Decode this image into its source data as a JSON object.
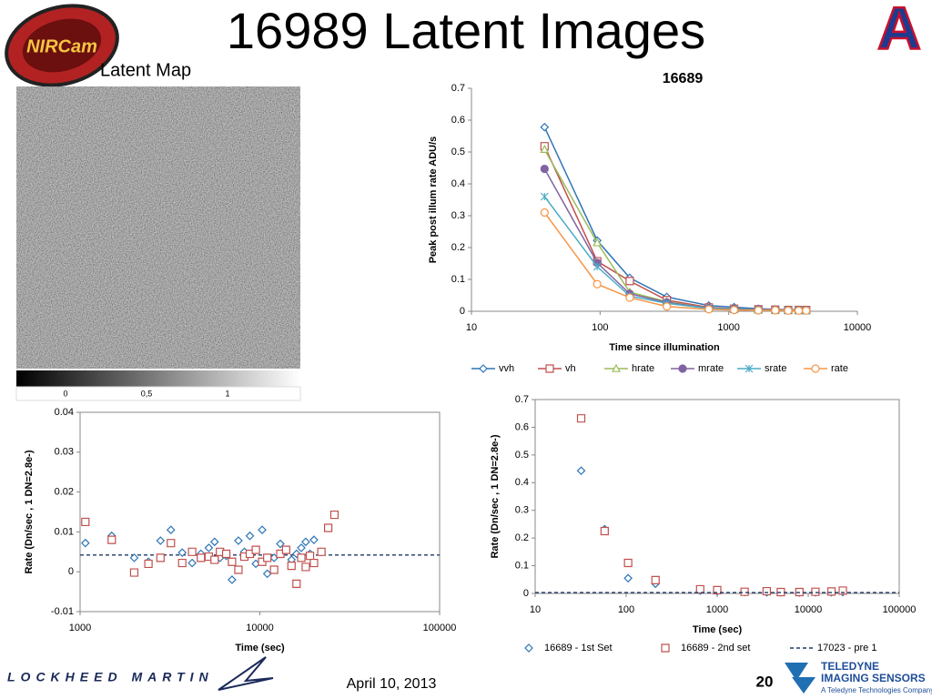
{
  "title": "16989 Latent Images",
  "latent_map": {
    "label": "Latent Map",
    "colorbar_labels": [
      "0",
      "0,5",
      "1"
    ]
  },
  "logos": {
    "nircam": "NIRCam",
    "arizona": "A",
    "lockheed": "LOCKHEED MARTIN",
    "teledyne": "TELEDYNE",
    "teledyne_division": "IMAGING SENSORS",
    "teledyne_tagline": "A Teledyne Technologies Company"
  },
  "date": "April 10, 2013",
  "page_number": "20",
  "chart_data": [
    {
      "type": "line",
      "title": "16689",
      "frame": "axes",
      "xlabel": "Time since illumination",
      "ylabel": "Peak post illum rate   ADU/s",
      "xscale": "log",
      "xlim": [
        10,
        10000
      ],
      "xticks": [
        10,
        100,
        1000,
        10000
      ],
      "ylim": [
        0,
        0.7
      ],
      "yticks": [
        0,
        0.1,
        0.2,
        0.3,
        0.4,
        0.5,
        0.6,
        0.7
      ],
      "legend": "bottom",
      "x": [
        37,
        95,
        170,
        330,
        700,
        1100,
        1700,
        2300,
        2900,
        3500,
        4000
      ],
      "series": [
        {
          "name": "vvh",
          "color": "#2e75b6",
          "marker": "diamond",
          "values": [
            0.578,
            0.222,
            0.105,
            0.045,
            0.018,
            0.013,
            0.008,
            0.006,
            0.005,
            0.005,
            0.004
          ]
        },
        {
          "name": "vh",
          "color": "#c0504d",
          "marker": "square",
          "values": [
            0.518,
            0.157,
            0.095,
            0.035,
            0.012,
            0.008,
            0.006,
            0.005,
            0.004,
            0.004,
            0.004
          ]
        },
        {
          "name": "hrate",
          "color": "#9bbb59",
          "marker": "triangle",
          "values": [
            0.508,
            0.215,
            0.06,
            0.03,
            0.01,
            0.008,
            0.005,
            0.004,
            0.004,
            0.003,
            0.003
          ]
        },
        {
          "name": "mrate",
          "color": "#8064a2",
          "marker": "circle",
          "values": [
            0.447,
            0.152,
            0.055,
            0.028,
            0.01,
            0.007,
            0.005,
            0.004,
            0.003,
            0.003,
            0.003
          ]
        },
        {
          "name": "srate",
          "color": "#4bacc6",
          "marker": "star",
          "values": [
            0.36,
            0.14,
            0.048,
            0.025,
            0.009,
            0.006,
            0.004,
            0.003,
            0.003,
            0.003,
            0.002
          ]
        },
        {
          "name": "rate",
          "color": "#f79646",
          "marker": "open-circle",
          "values": [
            0.31,
            0.085,
            0.043,
            0.015,
            0.006,
            0.004,
            0.003,
            0.003,
            0.002,
            0.002,
            0.002
          ]
        }
      ]
    },
    {
      "type": "scatter",
      "frame": "box",
      "xlabel": "Time (sec)",
      "ylabel": "Rate (Dn/sec , 1 DN=2.8e-)",
      "xscale": "log",
      "xlim": [
        1000,
        100000
      ],
      "xticks": [
        1000,
        10000,
        100000
      ],
      "ylim": [
        -0.01,
        0.04
      ],
      "yticks": [
        -0.01,
        0,
        0.01,
        0.02,
        0.03,
        0.04
      ],
      "reference_line": {
        "value": 0.0042,
        "color": "#1f3864",
        "line_style": "dashed"
      },
      "series": [
        {
          "color": "#2e75b6",
          "marker": "diamond",
          "x": [
            1070,
            1500,
            2000,
            2400,
            2800,
            3200,
            3700,
            4200,
            4700,
            5200,
            5600,
            6000,
            6500,
            7000,
            7600,
            8200,
            8800,
            9500,
            10300,
            11000,
            12000,
            13000,
            14000,
            15000,
            16000,
            17000,
            18000,
            19000,
            20000,
            22000
          ],
          "values": [
            0.0072,
            0.009,
            0.0035,
            0.0025,
            0.0078,
            0.0105,
            0.0048,
            0.0022,
            0.0045,
            0.006,
            0.0075,
            0.0035,
            0.004,
            -0.002,
            0.0078,
            0.005,
            0.009,
            0.002,
            0.0105,
            -0.0005,
            0.0035,
            0.007,
            0.0055,
            0.003,
            0.0045,
            0.006,
            0.0075,
            0.0045,
            0.008,
            0.005
          ]
        },
        {
          "color": "#c0504d",
          "marker": "square",
          "x": [
            1070,
            1500,
            2000,
            2400,
            2800,
            3200,
            3700,
            4200,
            4700,
            5200,
            5600,
            6000,
            6500,
            7000,
            7600,
            8200,
            8800,
            9500,
            10300,
            11000,
            12000,
            13000,
            14000,
            15000,
            16000,
            17000,
            18000,
            19000,
            20000,
            22000,
            24000,
            26000
          ],
          "values": [
            0.0125,
            0.008,
            -0.0002,
            0.002,
            0.0035,
            0.0072,
            0.0022,
            0.005,
            0.0035,
            0.0038,
            0.003,
            0.005,
            0.0045,
            0.0025,
            0.0005,
            0.0038,
            0.0045,
            0.0055,
            0.0025,
            0.0035,
            0.0005,
            0.0045,
            0.0055,
            0.0015,
            -0.003,
            0.0035,
            0.0012,
            0.004,
            0.0022,
            0.005,
            0.011,
            0.0143
          ]
        }
      ]
    },
    {
      "type": "scatter",
      "frame": "box",
      "xlabel": "Time (sec)",
      "ylabel": "Rate (Dn/sec , 1 DN=2.8e-)",
      "xscale": "log",
      "xlim": [
        10,
        100000
      ],
      "xticks": [
        10,
        100,
        1000,
        10000,
        100000
      ],
      "ylim": [
        0,
        0.7
      ],
      "yticks": [
        0,
        0.1,
        0.2,
        0.3,
        0.4,
        0.5,
        0.6,
        0.7
      ],
      "legend": "bottom",
      "series": [
        {
          "name": "16689 - 1st Set",
          "color": "#2e75b6",
          "marker": "diamond",
          "x": [
            32,
            58,
            105,
            210,
            650,
            1000,
            2000,
            3500,
            5000,
            8000,
            12000,
            18000,
            24000
          ],
          "values": [
            0.443,
            0.232,
            0.055,
            0.035,
            0.01,
            0.008,
            0.005,
            0.004,
            0.004,
            0.003,
            0.004,
            0.004,
            0.005
          ]
        },
        {
          "name": "16689 - 2nd set",
          "color": "#c0504d",
          "marker": "square",
          "x": [
            32,
            58,
            105,
            210,
            650,
            1000,
            2000,
            3500,
            5000,
            8000,
            12000,
            18000,
            24000
          ],
          "values": [
            0.632,
            0.225,
            0.11,
            0.048,
            0.015,
            0.012,
            0.006,
            0.008,
            0.005,
            0.005,
            0.006,
            0.007,
            0.01
          ]
        },
        {
          "name": "17023 - pre 1",
          "color": "#1f3864",
          "line_style": "dashed",
          "x": [
            10,
            100000
          ],
          "values": [
            0.003,
            0.003
          ]
        }
      ]
    }
  ]
}
